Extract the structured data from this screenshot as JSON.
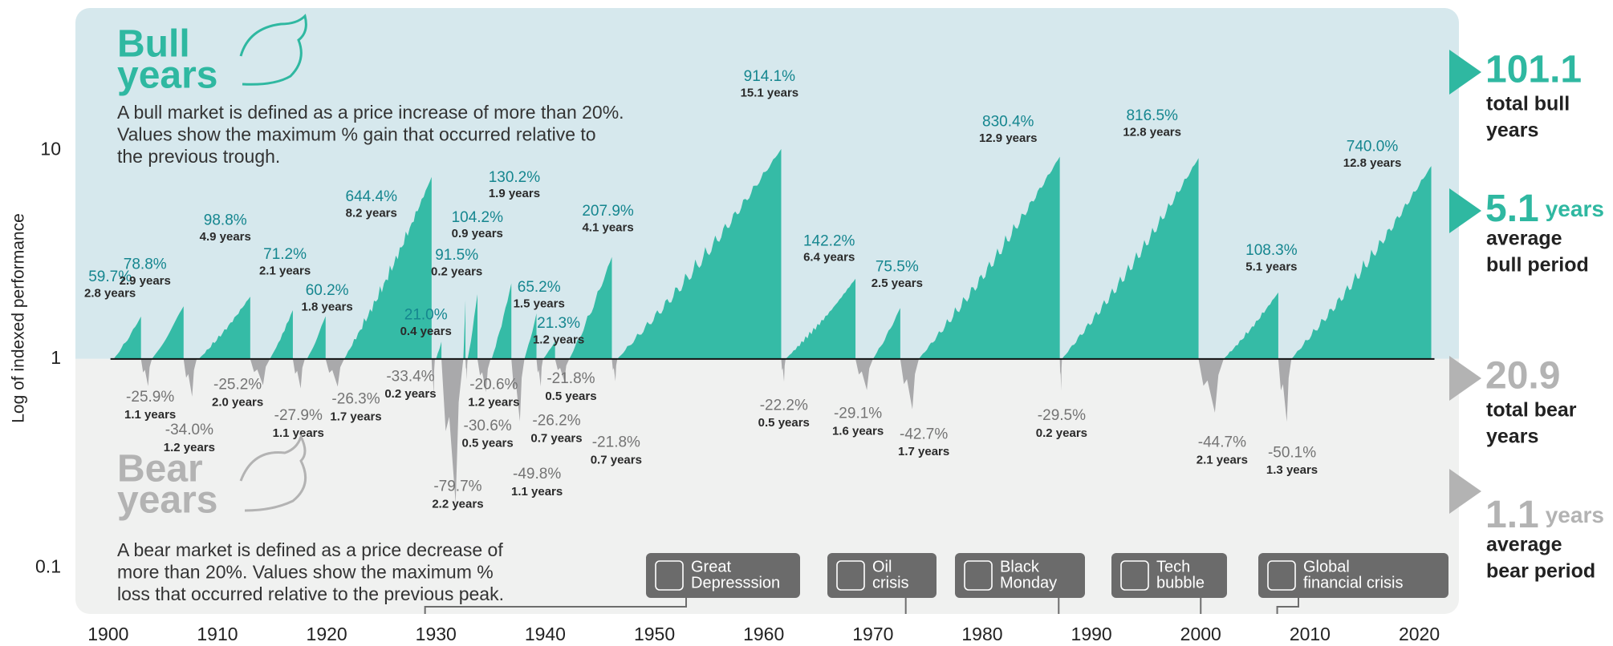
{
  "chart_data": {
    "type": "bull-bear",
    "y_label": "Log of indexed performance",
    "log": true,
    "ylim": [
      0.06,
      48
    ],
    "yticks": [
      0.1,
      1,
      10
    ],
    "xlim": [
      1897,
      2024
    ],
    "xticks": [
      1900,
      1910,
      1920,
      1930,
      1940,
      1950,
      1960,
      1970,
      1980,
      1990,
      2000,
      2010,
      2020
    ],
    "bull": {
      "title_lines": [
        "Bull",
        "years"
      ],
      "description_lines": [
        "A bull market is defined as a price increase of more than 20%.",
        "Values show the maximum % gain that occurred relative to",
        "the previous trough."
      ],
      "color": "#35bba6",
      "markets": [
        {
          "start": 1900.5,
          "end": 1903.0,
          "gain": 59.7,
          "gain_label": "59.7%",
          "duration": "2.8 years"
        },
        {
          "start": 1904.0,
          "end": 1906.9,
          "gain": 78.8,
          "gain_label": "78.8%",
          "duration": "2.9 years"
        },
        {
          "start": 1908.3,
          "end": 1913.0,
          "gain": 98.8,
          "gain_label": "98.8%",
          "duration": "4.9 years"
        },
        {
          "start": 1914.8,
          "end": 1916.9,
          "gain": 71.2,
          "gain_label": "71.2%",
          "duration": "2.1 years"
        },
        {
          "start": 1918.2,
          "end": 1919.9,
          "gain": 60.2,
          "gain_label": "60.2%",
          "duration": "1.8 years"
        },
        {
          "start": 1921.6,
          "end": 1929.6,
          "gain": 644.4,
          "gain_label": "644.4%",
          "duration": "8.2 years"
        },
        {
          "start": 1930.0,
          "end": 1930.5,
          "gain": 21.0,
          "gain_label": "21.0%",
          "duration": "0.4 years"
        },
        {
          "start": 1932.5,
          "end": 1932.7,
          "gain": 91.5,
          "gain_label": "91.5%",
          "duration": "0.2 years"
        },
        {
          "start": 1932.9,
          "end": 1933.8,
          "gain": 104.2,
          "gain_label": "104.2%",
          "duration": "0.9 years"
        },
        {
          "start": 1935.1,
          "end": 1936.9,
          "gain": 130.2,
          "gain_label": "130.2%",
          "duration": "1.9 years"
        },
        {
          "start": 1938.1,
          "end": 1939.2,
          "gain": 65.2,
          "gain_label": "65.2%",
          "duration": "1.5 years"
        },
        {
          "start": 1939.8,
          "end": 1940.9,
          "gain": 21.3,
          "gain_label": "21.3%",
          "duration": "1.2 years"
        },
        {
          "start": 1942.2,
          "end": 1946.1,
          "gain": 207.9,
          "gain_label": "207.9%",
          "duration": "4.1 years"
        },
        {
          "start": 1946.6,
          "end": 1961.6,
          "gain": 914.1,
          "gain_label": "914.1%",
          "duration": "15.1 years"
        },
        {
          "start": 1962.0,
          "end": 1968.4,
          "gain": 142.2,
          "gain_label": "142.2%",
          "duration": "6.4 years"
        },
        {
          "start": 1970.0,
          "end": 1972.5,
          "gain": 75.5,
          "gain_label": "75.5%",
          "duration": "2.5 years"
        },
        {
          "start": 1974.2,
          "end": 1987.1,
          "gain": 830.4,
          "gain_label": "830.4%",
          "duration": "12.9 years"
        },
        {
          "start": 1987.3,
          "end": 1999.8,
          "gain": 816.5,
          "gain_label": "816.5%",
          "duration": "12.8 years"
        },
        {
          "start": 2002.1,
          "end": 2007.1,
          "gain": 108.3,
          "gain_label": "108.3%",
          "duration": "5.1 years"
        },
        {
          "start": 2008.3,
          "end": 2021.1,
          "gain": 740.0,
          "gain_label": "740.0%",
          "duration": "12.8 years"
        }
      ],
      "summary": {
        "total": 101.1,
        "total_lines": [
          "total bull",
          "years"
        ],
        "average": 5.1,
        "average_unit": "years",
        "average_lines": [
          "average",
          "bull period"
        ]
      }
    },
    "bear": {
      "title_lines": [
        "Bear",
        "years"
      ],
      "description_lines": [
        "A bear market is defined as a price decrease of",
        "more than 20%. Values show the maximum %",
        "loss that occurred relative to the previous peak."
      ],
      "color": "#a9a9ab",
      "markets": [
        {
          "start": 1903.0,
          "end": 1904.0,
          "loss": -25.9,
          "loss_label": "-25.9%",
          "duration": "1.1 years"
        },
        {
          "start": 1906.9,
          "end": 1908.1,
          "loss": -34.0,
          "loss_label": "-34.0%",
          "duration": "1.2 years"
        },
        {
          "start": 1913.0,
          "end": 1914.8,
          "loss": -25.2,
          "loss_label": "-25.2%",
          "duration": "2.0 years"
        },
        {
          "start": 1916.9,
          "end": 1918.0,
          "loss": -27.9,
          "loss_label": "-27.9%",
          "duration": "1.1 years"
        },
        {
          "start": 1919.9,
          "end": 1921.6,
          "loss": -26.3,
          "loss_label": "-26.3%",
          "duration": "1.7 years"
        },
        {
          "start": 1929.6,
          "end": 1929.9,
          "loss": -33.4,
          "loss_label": "-33.4%",
          "duration": "0.2 years"
        },
        {
          "start": 1930.5,
          "end": 1932.5,
          "loss": -79.7,
          "loss_label": "-79.7%",
          "duration": "2.2 years"
        },
        {
          "start": 1932.7,
          "end": 1932.9,
          "loss": -20.6,
          "loss_label": "-20.6%",
          "duration": "1.2 years"
        },
        {
          "start": 1933.8,
          "end": 1935.0,
          "loss": -30.6,
          "loss_label": "-30.6%",
          "duration": "0.5 years"
        },
        {
          "start": 1936.9,
          "end": 1938.1,
          "loss": -49.8,
          "loss_label": "-49.8%",
          "duration": "1.1 years"
        },
        {
          "start": 1939.2,
          "end": 1939.8,
          "loss": -26.2,
          "loss_label": "-26.2%",
          "duration": "0.7 years"
        },
        {
          "start": 1940.9,
          "end": 1942.2,
          "loss": -21.8,
          "loss_label": "-21.8%",
          "duration": "0.5 years"
        },
        {
          "start": 1946.1,
          "end": 1946.6,
          "loss": -21.8,
          "loss_label": "-21.8%",
          "duration": "0.7 years"
        },
        {
          "start": 1961.6,
          "end": 1962.0,
          "loss": -22.2,
          "loss_label": "-22.2%",
          "duration": "0.5 years"
        },
        {
          "start": 1968.4,
          "end": 1970.0,
          "loss": -29.1,
          "loss_label": "-29.1%",
          "duration": "1.6 years"
        },
        {
          "start": 1972.5,
          "end": 1974.2,
          "loss": -42.7,
          "loss_label": "-42.7%",
          "duration": "1.7 years"
        },
        {
          "start": 1987.1,
          "end": 1987.3,
          "loss": -29.5,
          "loss_label": "-29.5%",
          "duration": "0.2 years"
        },
        {
          "start": 1999.8,
          "end": 2002.1,
          "loss": -44.7,
          "loss_label": "-44.7%",
          "duration": "2.1 years"
        },
        {
          "start": 2007.1,
          "end": 2008.3,
          "loss": -50.1,
          "loss_label": "-50.1%",
          "duration": "1.3 years"
        }
      ],
      "summary": {
        "total": 20.9,
        "total_lines": [
          "total bear",
          "years"
        ],
        "average": 1.1,
        "average_unit": "years",
        "average_lines": [
          "average",
          "bear period"
        ]
      }
    },
    "events": [
      {
        "year": 1929,
        "label_lines": [
          "Great",
          "Depresssion"
        ]
      },
      {
        "year": 1973,
        "label_lines": [
          "Oil",
          "crisis"
        ]
      },
      {
        "year": 1987,
        "label_lines": [
          "Black",
          "Monday"
        ]
      },
      {
        "year": 2000,
        "label_lines": [
          "Tech",
          "bubble"
        ]
      },
      {
        "year": 2007,
        "label_lines": [
          "Global",
          "financial crisis"
        ]
      }
    ]
  }
}
